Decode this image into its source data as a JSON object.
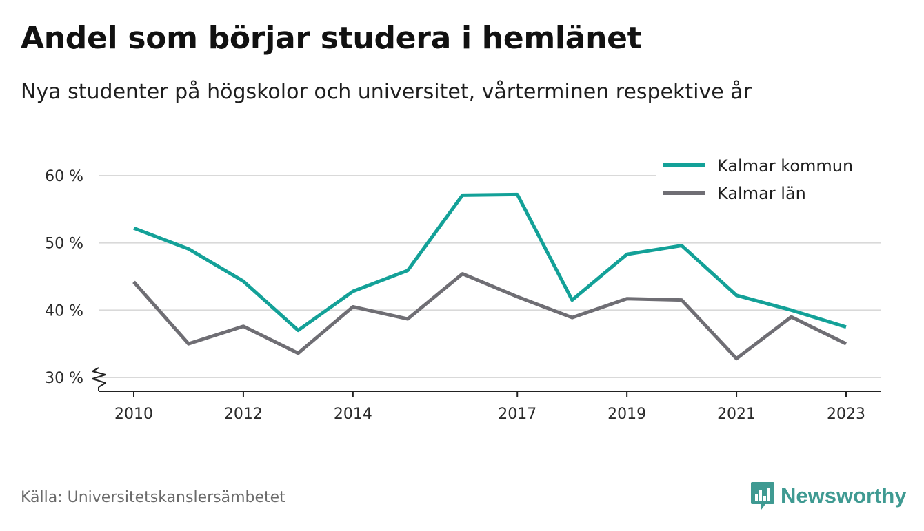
{
  "header": {
    "title": "Andel som börjar studera i hemlänet",
    "subtitle": "Nya studenter på högskolor och universitet, vårterminen respektive år"
  },
  "chart_data": {
    "type": "line",
    "title": "Andel som börjar studera i hemlänet",
    "subtitle": "Nya studenter på högskolor och universitet, vårterminen respektive år",
    "xlabel": "",
    "ylabel": "",
    "x": [
      2010,
      2011,
      2012,
      2013,
      2014,
      2015,
      2016,
      2017,
      2018,
      2019,
      2020,
      2021,
      2022,
      2023
    ],
    "x_tick_labels": [
      "2010",
      "2012",
      "2014",
      "2017",
      "2019",
      "2021",
      "2023"
    ],
    "y_ticks": [
      30,
      40,
      50,
      60
    ],
    "y_tick_labels": [
      "30 %",
      "40 %",
      "50 %",
      "60 %"
    ],
    "ylim": [
      28,
      62
    ],
    "xlim": [
      2009.7,
      2023.5
    ],
    "grid": "horizontal",
    "axis_break": true,
    "legend_position": "top-right",
    "series": [
      {
        "name": "Kalmar kommun",
        "color": "#13a198",
        "values": [
          52.2,
          49.1,
          44.3,
          37.0,
          42.8,
          45.9,
          57.1,
          57.2,
          41.5,
          48.3,
          49.6,
          42.2,
          40.0,
          37.5
        ]
      },
      {
        "name": "Kalmar län",
        "color": "#6f6e74",
        "values": [
          44.2,
          35.0,
          37.6,
          33.6,
          40.5,
          38.7,
          45.4,
          42.0,
          38.9,
          41.7,
          41.5,
          32.8,
          39.0,
          35.0
        ]
      }
    ]
  },
  "footer": {
    "source": "Källa: Universitetskanslersämbetet",
    "brand": "Newsworthy",
    "brand_color": "#3f9a92"
  }
}
